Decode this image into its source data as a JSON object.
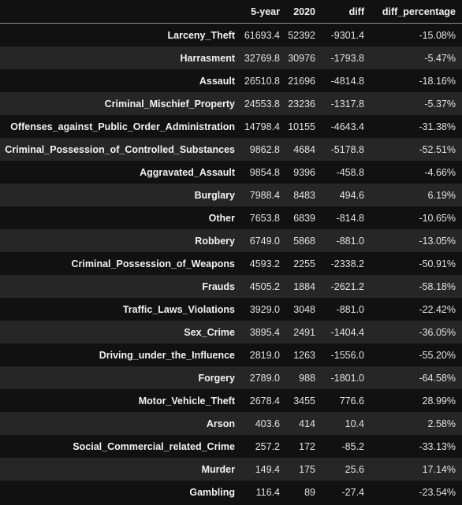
{
  "table": {
    "columns": [
      "",
      "5-year",
      "2020",
      "diff",
      "diff_percentage"
    ],
    "rows": [
      {
        "index": "Larceny_Theft",
        "five_year": "61693.4",
        "y2020": "52392",
        "diff": "-9301.4",
        "pct": "-15.08%"
      },
      {
        "index": "Harrasment",
        "five_year": "32769.8",
        "y2020": "30976",
        "diff": "-1793.8",
        "pct": "-5.47%"
      },
      {
        "index": "Assault",
        "five_year": "26510.8",
        "y2020": "21696",
        "diff": "-4814.8",
        "pct": "-18.16%"
      },
      {
        "index": "Criminal_Mischief_Property",
        "five_year": "24553.8",
        "y2020": "23236",
        "diff": "-1317.8",
        "pct": "-5.37%"
      },
      {
        "index": "Offenses_against_Public_Order_Administration",
        "five_year": "14798.4",
        "y2020": "10155",
        "diff": "-4643.4",
        "pct": "-31.38%"
      },
      {
        "index": "Criminal_Possession_of_Controlled_Substances",
        "five_year": "9862.8",
        "y2020": "4684",
        "diff": "-5178.8",
        "pct": "-52.51%"
      },
      {
        "index": "Aggravated_Assault",
        "five_year": "9854.8",
        "y2020": "9396",
        "diff": "-458.8",
        "pct": "-4.66%"
      },
      {
        "index": "Burglary",
        "five_year": "7988.4",
        "y2020": "8483",
        "diff": "494.6",
        "pct": "6.19%"
      },
      {
        "index": "Other",
        "five_year": "7653.8",
        "y2020": "6839",
        "diff": "-814.8",
        "pct": "-10.65%"
      },
      {
        "index": "Robbery",
        "five_year": "6749.0",
        "y2020": "5868",
        "diff": "-881.0",
        "pct": "-13.05%"
      },
      {
        "index": "Criminal_Possession_of_Weapons",
        "five_year": "4593.2",
        "y2020": "2255",
        "diff": "-2338.2",
        "pct": "-50.91%"
      },
      {
        "index": "Frauds",
        "five_year": "4505.2",
        "y2020": "1884",
        "diff": "-2621.2",
        "pct": "-58.18%"
      },
      {
        "index": "Traffic_Laws_Violations",
        "five_year": "3929.0",
        "y2020": "3048",
        "diff": "-881.0",
        "pct": "-22.42%"
      },
      {
        "index": "Sex_Crime",
        "five_year": "3895.4",
        "y2020": "2491",
        "diff": "-1404.4",
        "pct": "-36.05%"
      },
      {
        "index": "Driving_under_the_Influence",
        "five_year": "2819.0",
        "y2020": "1263",
        "diff": "-1556.0",
        "pct": "-55.20%"
      },
      {
        "index": "Forgery",
        "five_year": "2789.0",
        "y2020": "988",
        "diff": "-1801.0",
        "pct": "-64.58%"
      },
      {
        "index": "Motor_Vehicle_Theft",
        "five_year": "2678.4",
        "y2020": "3455",
        "diff": "776.6",
        "pct": "28.99%"
      },
      {
        "index": "Arson",
        "five_year": "403.6",
        "y2020": "414",
        "diff": "10.4",
        "pct": "2.58%"
      },
      {
        "index": "Social_Commercial_related_Crime",
        "five_year": "257.2",
        "y2020": "172",
        "diff": "-85.2",
        "pct": "-33.13%"
      },
      {
        "index": "Murder",
        "five_year": "149.4",
        "y2020": "175",
        "diff": "25.6",
        "pct": "17.14%"
      },
      {
        "index": "Gambling",
        "five_year": "116.4",
        "y2020": "89",
        "diff": "-27.4",
        "pct": "-23.54%"
      }
    ]
  },
  "colors": {
    "background": "#111111",
    "stripe": "#262626",
    "text": "#e8e8e8",
    "header_rule": "#8a8a8a"
  }
}
